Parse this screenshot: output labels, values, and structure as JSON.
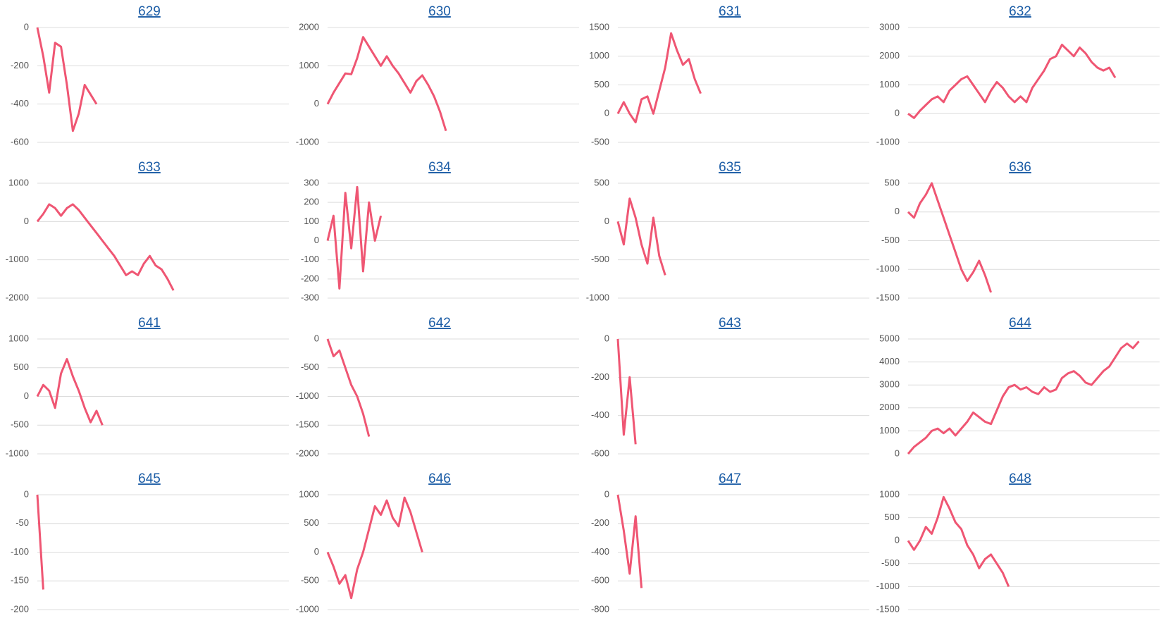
{
  "chart_data": [
    {
      "type": "line",
      "title": "629",
      "color": "#ef5673",
      "grid": true,
      "ylim": [
        -600,
        0
      ],
      "yticks": [
        -600,
        -400,
        -200,
        0
      ],
      "values": [
        0,
        -150,
        -340,
        -80,
        -100,
        -300,
        -540,
        -450,
        -300,
        -350,
        -400
      ]
    },
    {
      "type": "line",
      "title": "630",
      "color": "#ef5673",
      "grid": true,
      "ylim": [
        -1000,
        2000
      ],
      "yticks": [
        -1000,
        0,
        1000,
        2000
      ],
      "values": [
        0,
        300,
        550,
        800,
        780,
        1200,
        1750,
        1500,
        1250,
        1000,
        1250,
        1000,
        800,
        550,
        300,
        600,
        750,
        500,
        200,
        -200,
        -700
      ]
    },
    {
      "type": "line",
      "title": "631",
      "color": "#ef5673",
      "grid": true,
      "ylim": [
        -500,
        1500
      ],
      "yticks": [
        -500,
        0,
        500,
        1000,
        1500
      ],
      "values": [
        0,
        200,
        0,
        -150,
        250,
        300,
        0,
        400,
        800,
        1400,
        1100,
        850,
        950,
        600,
        350
      ]
    },
    {
      "type": "line",
      "title": "632",
      "color": "#ef5673",
      "grid": true,
      "ylim": [
        -1000,
        3000
      ],
      "yticks": [
        -1000,
        0,
        1000,
        2000,
        3000
      ],
      "values": [
        0,
        -150,
        100,
        300,
        500,
        600,
        400,
        800,
        1000,
        1200,
        1300,
        1000,
        700,
        400,
        800,
        1100,
        900,
        600,
        400,
        600,
        400,
        900,
        1200,
        1500,
        1900,
        2000,
        2400,
        2200,
        2000,
        2300,
        2100,
        1800,
        1600,
        1500,
        1600,
        1250
      ]
    },
    {
      "type": "line",
      "title": "633",
      "color": "#ef5673",
      "grid": true,
      "ylim": [
        -2000,
        1000
      ],
      "yticks": [
        -2000,
        -1000,
        0,
        1000
      ],
      "values": [
        0,
        200,
        450,
        350,
        150,
        350,
        450,
        300,
        100,
        -100,
        -300,
        -500,
        -700,
        -900,
        -1150,
        -1400,
        -1300,
        -1400,
        -1100,
        -900,
        -1150,
        -1250,
        -1500,
        -1800
      ]
    },
    {
      "type": "line",
      "title": "634",
      "color": "#ef5673",
      "grid": true,
      "ylim": [
        -300,
        300
      ],
      "yticks": [
        -300,
        -200,
        -100,
        0,
        100,
        200,
        300
      ],
      "values": [
        0,
        130,
        -250,
        250,
        -40,
        280,
        -160,
        200,
        0,
        130
      ]
    },
    {
      "type": "line",
      "title": "635",
      "color": "#ef5673",
      "grid": true,
      "ylim": [
        -1000,
        500
      ],
      "yticks": [
        -1000,
        -500,
        0,
        500
      ],
      "values": [
        0,
        -300,
        300,
        50,
        -300,
        -550,
        50,
        -450,
        -700
      ]
    },
    {
      "type": "line",
      "title": "636",
      "color": "#ef5673",
      "grid": true,
      "ylim": [
        -1500,
        500
      ],
      "yticks": [
        -1500,
        -1000,
        -500,
        0,
        500
      ],
      "values": [
        0,
        -100,
        150,
        300,
        500,
        200,
        -100,
        -400,
        -700,
        -1000,
        -1200,
        -1050,
        -850,
        -1100,
        -1400
      ]
    },
    {
      "type": "line",
      "title": "641",
      "color": "#ef5673",
      "grid": true,
      "ylim": [
        -1000,
        1000
      ],
      "yticks": [
        -1000,
        -500,
        0,
        500,
        1000
      ],
      "values": [
        0,
        200,
        100,
        -200,
        400,
        650,
        350,
        100,
        -200,
        -450,
        -250,
        -500
      ]
    },
    {
      "type": "line",
      "title": "642",
      "color": "#ef5673",
      "grid": true,
      "ylim": [
        -2000,
        0
      ],
      "yticks": [
        -2000,
        -1500,
        -1000,
        -500,
        0
      ],
      "values": [
        0,
        -300,
        -200,
        -500,
        -800,
        -1000,
        -1300,
        -1700
      ]
    },
    {
      "type": "line",
      "title": "643",
      "color": "#ef5673",
      "grid": true,
      "ylim": [
        -600,
        0
      ],
      "yticks": [
        -600,
        -400,
        -200,
        0
      ],
      "values": [
        0,
        -500,
        -200,
        -550
      ]
    },
    {
      "type": "line",
      "title": "644",
      "color": "#ef5673",
      "grid": true,
      "ylim": [
        0,
        5000
      ],
      "yticks": [
        0,
        1000,
        2000,
        3000,
        4000,
        5000
      ],
      "values": [
        0,
        300,
        500,
        700,
        1000,
        1100,
        900,
        1100,
        800,
        1100,
        1400,
        1800,
        1600,
        1400,
        1300,
        1900,
        2500,
        2900,
        3000,
        2800,
        2900,
        2700,
        2600,
        2900,
        2700,
        2800,
        3300,
        3500,
        3600,
        3400,
        3100,
        3000,
        3300,
        3600,
        3800,
        4200,
        4600,
        4800,
        4600,
        4900
      ]
    },
    {
      "type": "line",
      "title": "645",
      "color": "#ef5673",
      "grid": true,
      "ylim": [
        -200,
        0
      ],
      "yticks": [
        -200,
        -150,
        -100,
        -50,
        0
      ],
      "values": [
        0,
        -165
      ]
    },
    {
      "type": "line",
      "title": "646",
      "color": "#ef5673",
      "grid": true,
      "ylim": [
        -1000,
        1000
      ],
      "yticks": [
        -1000,
        -500,
        0,
        500,
        1000
      ],
      "values": [
        0,
        -250,
        -550,
        -400,
        -800,
        -300,
        0,
        400,
        800,
        650,
        900,
        600,
        450,
        950,
        700,
        350,
        0
      ]
    },
    {
      "type": "line",
      "title": "647",
      "color": "#ef5673",
      "grid": true,
      "ylim": [
        -800,
        0
      ],
      "yticks": [
        -800,
        -600,
        -400,
        -200,
        0
      ],
      "values": [
        0,
        -250,
        -550,
        -150,
        -650
      ]
    },
    {
      "type": "line",
      "title": "648",
      "color": "#ef5673",
      "grid": true,
      "ylim": [
        -1500,
        1000
      ],
      "yticks": [
        -1500,
        -1000,
        -500,
        0,
        500,
        1000
      ],
      "values": [
        0,
        -200,
        0,
        300,
        150,
        500,
        950,
        700,
        400,
        250,
        -100,
        -300,
        -600,
        -400,
        -300,
        -500,
        -700,
        -1000
      ]
    }
  ]
}
